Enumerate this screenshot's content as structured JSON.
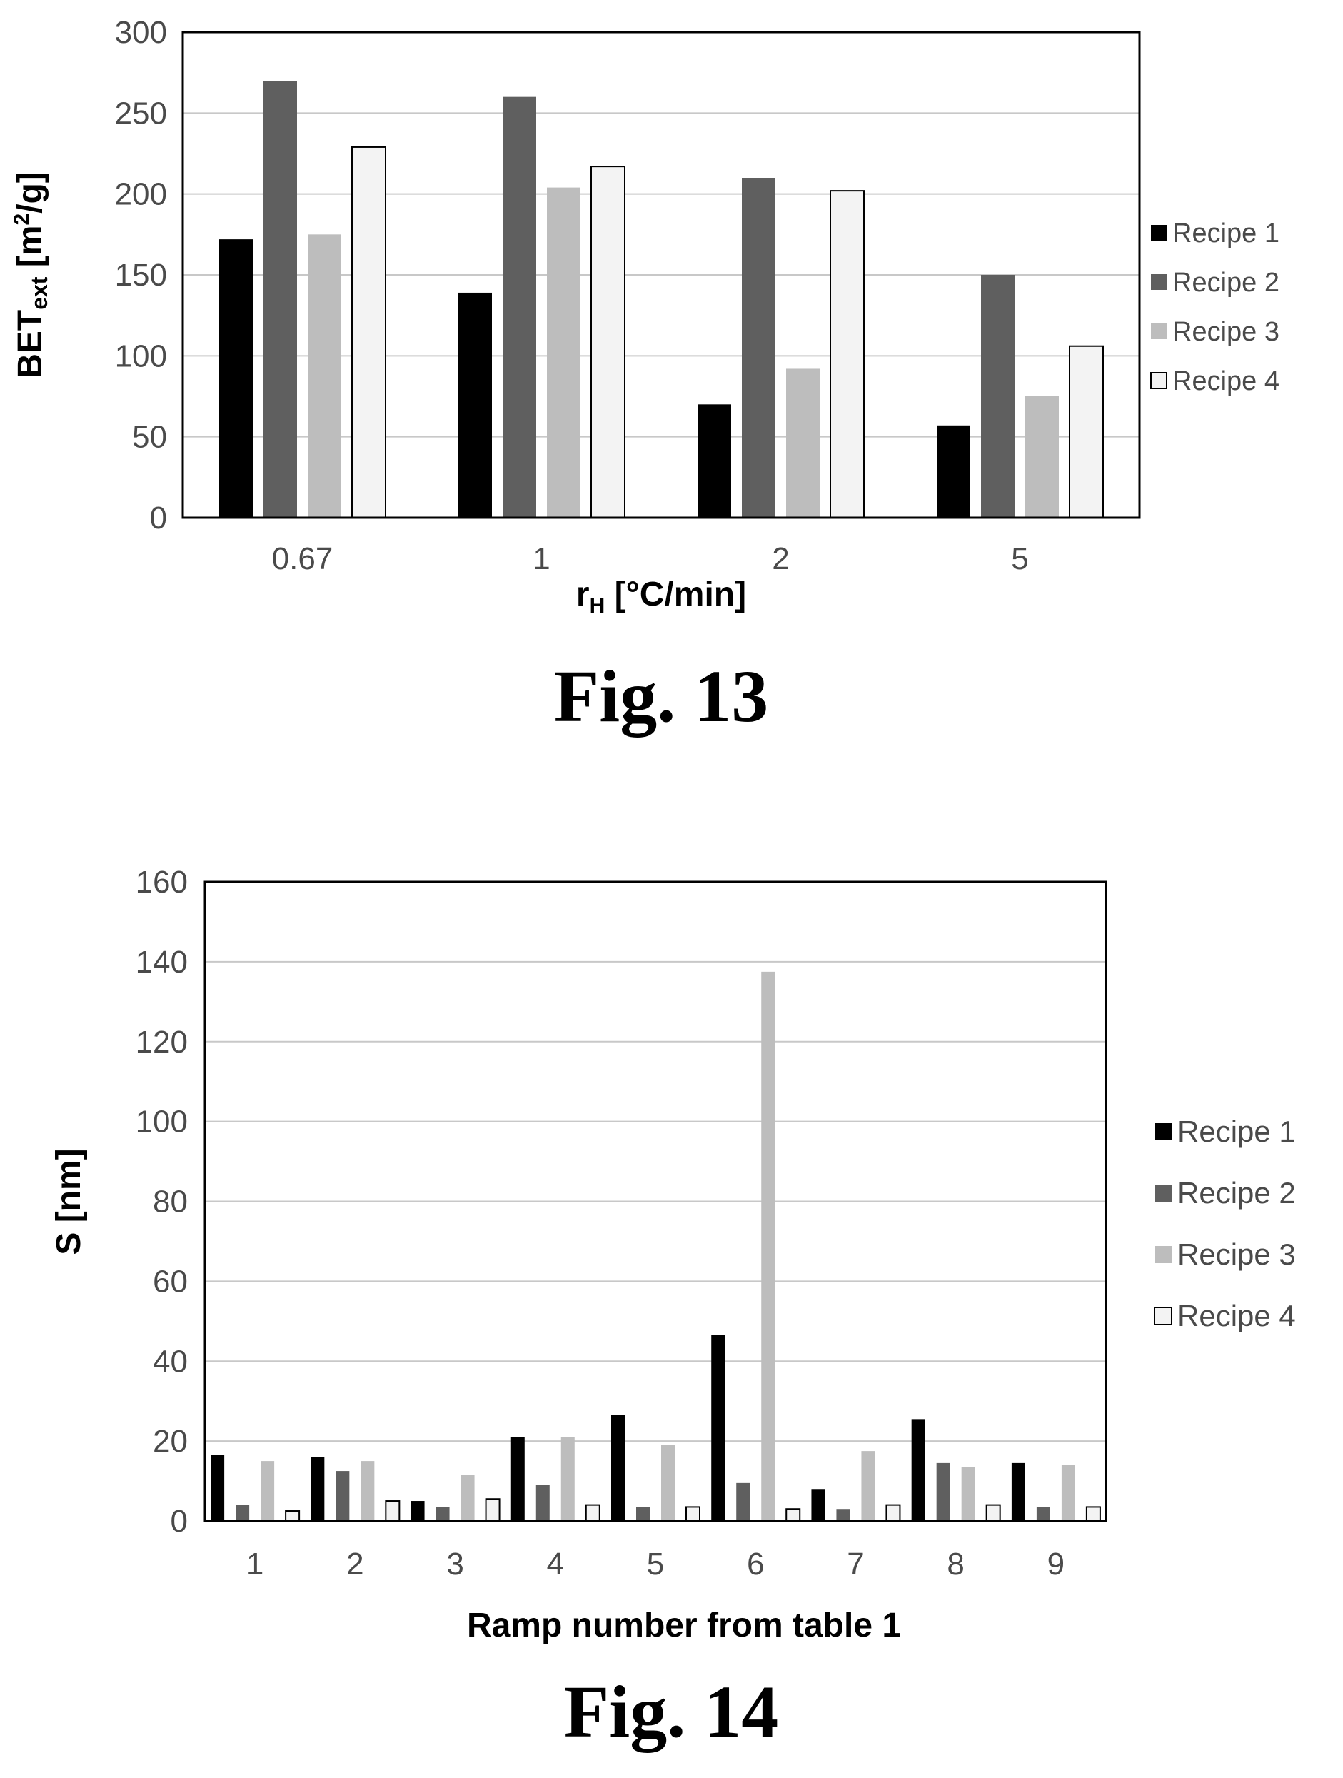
{
  "colors": {
    "recipe1": "#000000",
    "recipe2": "#5f5f5f",
    "recipe3": "#bdbdbd",
    "recipe4": "#f3f3f3",
    "grid": "#c8c8c8",
    "frame": "#000000"
  },
  "chart_data": [
    {
      "type": "bar",
      "caption": "Fig. 13",
      "xlabel_main": "r",
      "xlabel_sub": "H",
      "xlabel_rest": " [°C/min]",
      "ylabel_main": "BET",
      "ylabel_sub": "ext",
      "ylabel_unit_pre": " [m",
      "ylabel_unit_sup": "2",
      "ylabel_unit_post": "/g]",
      "categories": [
        "0.67",
        "1",
        "2",
        "5"
      ],
      "ylim": [
        0,
        300
      ],
      "yticks": [
        "0",
        "50",
        "100",
        "150",
        "200",
        "250",
        "300"
      ],
      "grid": true,
      "legend_position": "right",
      "series": [
        {
          "name": "Recipe 1",
          "values": [
            172,
            139,
            70,
            57
          ]
        },
        {
          "name": "Recipe 2",
          "values": [
            270,
            260,
            210,
            150
          ]
        },
        {
          "name": "Recipe 3",
          "values": [
            175,
            204,
            92,
            75
          ]
        },
        {
          "name": "Recipe 4",
          "values": [
            229,
            217,
            202,
            106
          ]
        }
      ]
    },
    {
      "type": "bar",
      "caption": "Fig. 14",
      "xlabel": "Ramp number from table 1",
      "ylabel": "S [nm]",
      "categories": [
        "1",
        "2",
        "3",
        "4",
        "5",
        "6",
        "7",
        "8",
        "9"
      ],
      "ylim": [
        0,
        160
      ],
      "yticks": [
        "0",
        "20",
        "40",
        "60",
        "80",
        "100",
        "120",
        "140",
        "160"
      ],
      "grid": true,
      "legend_position": "right",
      "series": [
        {
          "name": "Recipe 1",
          "values": [
            16.5,
            16,
            5,
            21,
            26.5,
            46.5,
            8,
            25.5,
            14.5
          ]
        },
        {
          "name": "Recipe 2",
          "values": [
            4,
            12.5,
            3.5,
            9,
            3.5,
            9.5,
            3,
            14.5,
            3.5
          ]
        },
        {
          "name": "Recipe 3",
          "values": [
            15,
            15,
            11.5,
            21,
            19,
            137.5,
            17.5,
            13.5,
            14
          ]
        },
        {
          "name": "Recipe 4",
          "values": [
            2.5,
            5,
            5.5,
            4,
            3.5,
            3,
            4,
            4,
            3.5
          ]
        }
      ]
    }
  ]
}
